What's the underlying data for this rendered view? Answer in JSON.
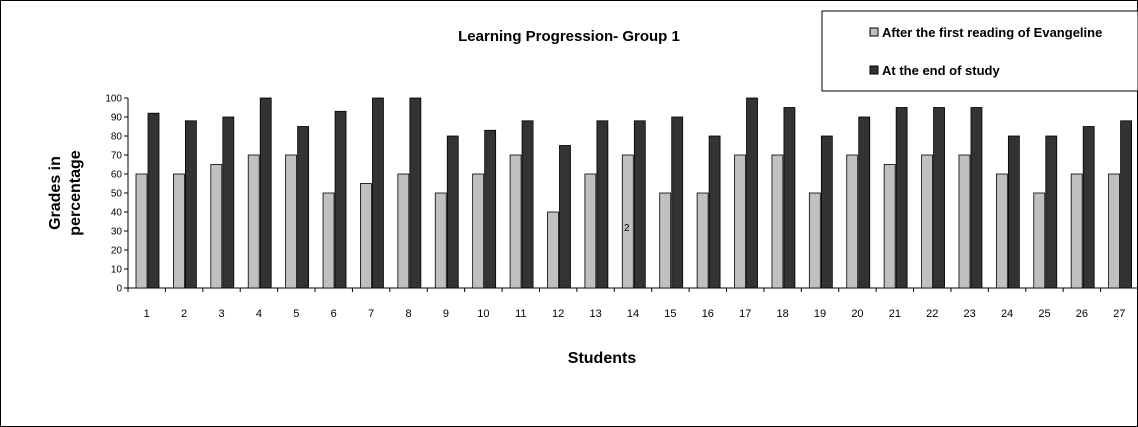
{
  "chart_data": {
    "type": "bar",
    "title": "Learning Progression- Group 1",
    "xlabel": "Students",
    "ylabel_line1": "Grades in",
    "ylabel_line2": "percentage",
    "ylim": [
      0,
      100
    ],
    "yticks": [
      0,
      10,
      20,
      30,
      40,
      50,
      60,
      70,
      80,
      90,
      100
    ],
    "grid": false,
    "legend_position": "top-right",
    "categories": [
      "1",
      "2",
      "3",
      "4",
      "5",
      "6",
      "7",
      "8",
      "9",
      "10",
      "11",
      "12",
      "13",
      "14",
      "15",
      "16",
      "17",
      "18",
      "19",
      "20",
      "21",
      "22",
      "23",
      "24",
      "25",
      "26",
      "27"
    ],
    "series": [
      {
        "name": "After the first reading of Evangeline",
        "color": "#c0c0c0",
        "values": [
          60,
          60,
          65,
          70,
          70,
          50,
          55,
          60,
          50,
          60,
          70,
          40,
          60,
          70,
          50,
          50,
          70,
          70,
          50,
          70,
          65,
          70,
          70,
          60,
          50,
          60,
          60
        ]
      },
      {
        "name": "At the end of study",
        "color": "#333333",
        "values": [
          92,
          88,
          90,
          100,
          85,
          93,
          100,
          100,
          80,
          83,
          88,
          75,
          88,
          88,
          90,
          80,
          100,
          95,
          80,
          90,
          95,
          95,
          95,
          80,
          80,
          85,
          88
        ]
      }
    ],
    "stray_mark": "2"
  }
}
